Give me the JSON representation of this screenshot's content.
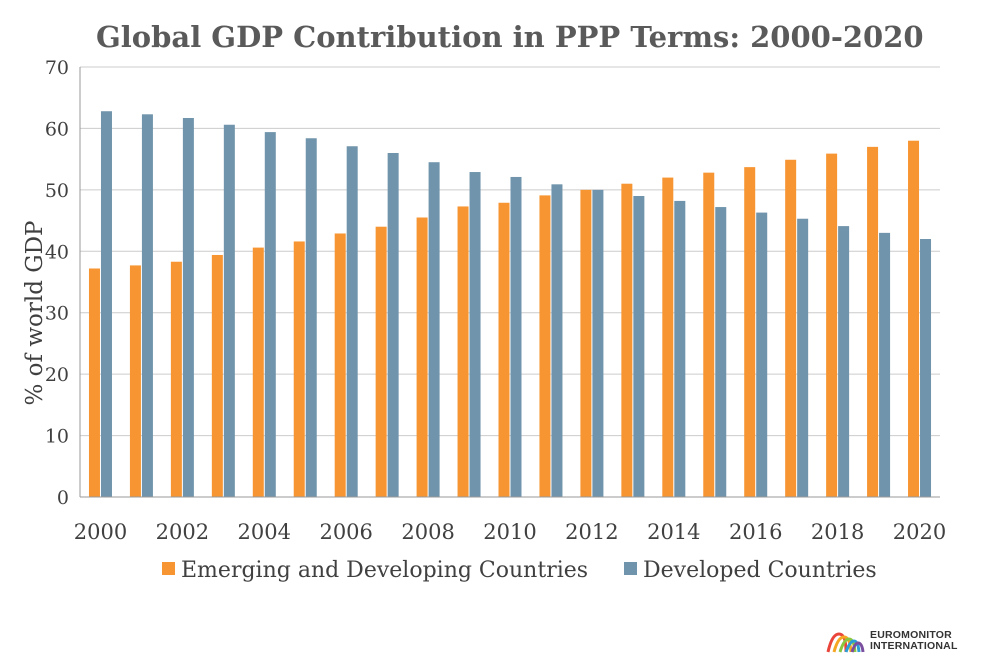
{
  "chart_data": {
    "type": "bar",
    "title": "Global GDP Contribution in PPP Terms: 2000-2020",
    "ylabel": "% of world GDP",
    "xlabel": "",
    "ylim": [
      0,
      70
    ],
    "yticks": [
      0,
      10,
      20,
      30,
      40,
      50,
      60,
      70
    ],
    "grid": true,
    "legend_position": "bottom",
    "categories": [
      "2000",
      "2001",
      "2002",
      "2003",
      "2004",
      "2005",
      "2006",
      "2007",
      "2008",
      "2009",
      "2010",
      "2011",
      "2012",
      "2013",
      "2014",
      "2015",
      "2016",
      "2017",
      "2018",
      "2019",
      "2020"
    ],
    "xtick_labels": [
      "2000",
      "2002",
      "2004",
      "2006",
      "2008",
      "2010",
      "2012",
      "2014",
      "2016",
      "2018",
      "2020"
    ],
    "series": [
      {
        "name": "Emerging and Developing Countries",
        "color": "#f79532",
        "values": [
          37.2,
          37.7,
          38.3,
          39.4,
          40.6,
          41.6,
          42.9,
          44.0,
          45.5,
          47.3,
          47.9,
          49.1,
          50.0,
          51.0,
          52.0,
          52.8,
          53.7,
          54.9,
          55.9,
          57.0,
          58.0
        ]
      },
      {
        "name": "Developed Countries",
        "color": "#6f94ab",
        "values": [
          62.8,
          62.3,
          61.7,
          60.6,
          59.4,
          58.4,
          57.1,
          56.0,
          54.5,
          52.9,
          52.1,
          50.9,
          50.0,
          49.0,
          48.2,
          47.2,
          46.3,
          45.3,
          44.1,
          43.0,
          42.0
        ]
      }
    ]
  },
  "logo": {
    "line1": "EUROMONITOR",
    "line2": "INTERNATIONAL"
  }
}
